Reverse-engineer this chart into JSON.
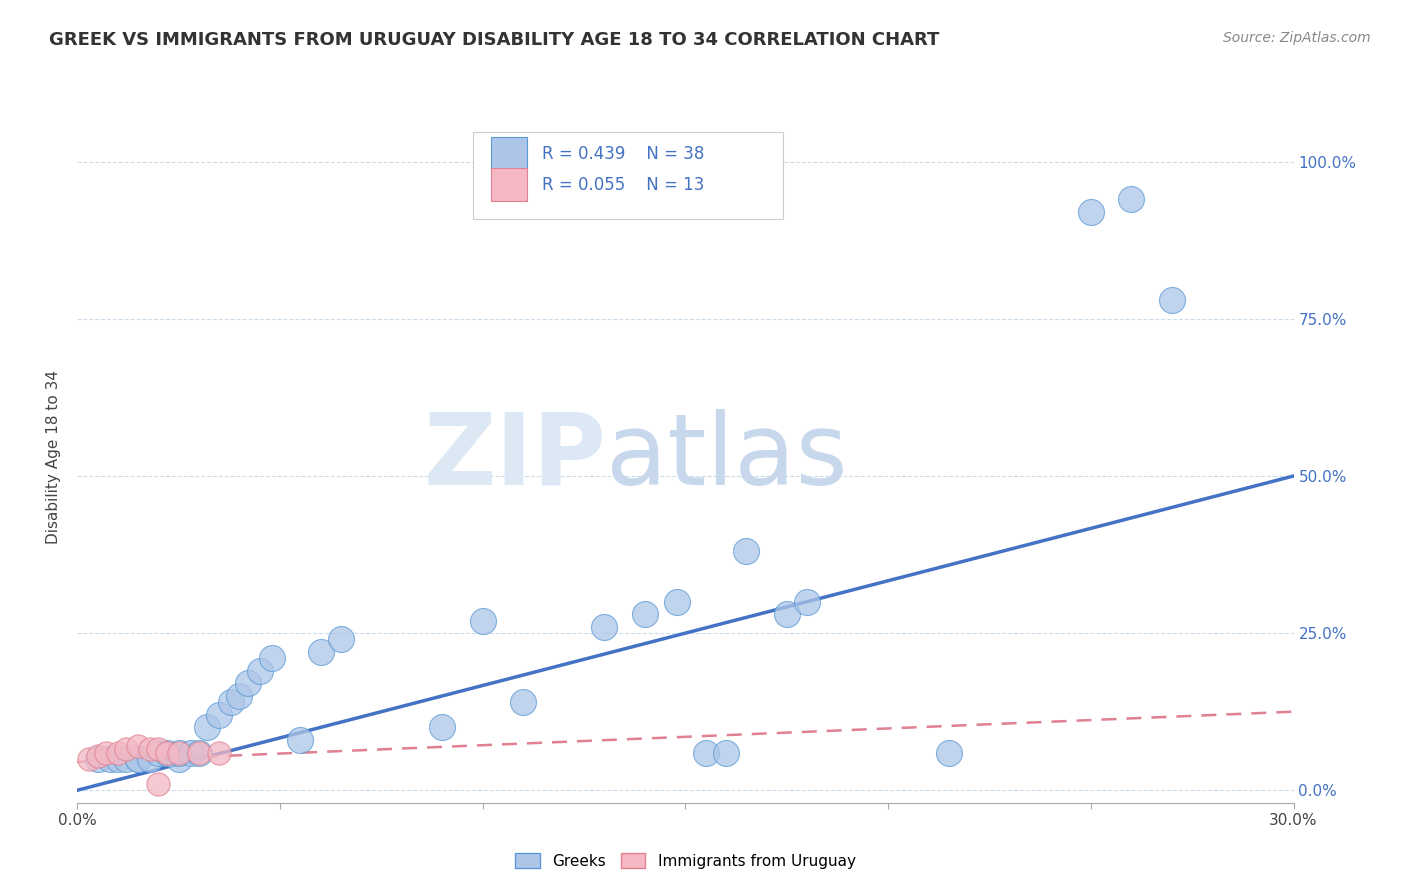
{
  "title": "GREEK VS IMMIGRANTS FROM URUGUAY DISABILITY AGE 18 TO 34 CORRELATION CHART",
  "source": "Source: ZipAtlas.com",
  "ylabel": "Disability Age 18 to 34",
  "xlabel": "",
  "xlim": [
    0.0,
    0.3
  ],
  "ylim": [
    -0.02,
    1.08
  ],
  "xticks": [
    0.0,
    0.05,
    0.1,
    0.15,
    0.2,
    0.25,
    0.3
  ],
  "xtick_labels": [
    "0.0%",
    "",
    "",
    "",
    "",
    "",
    "30.0%"
  ],
  "ytick_labels_right": [
    "0.0%",
    "25.0%",
    "50.0%",
    "75.0%",
    "100.0%"
  ],
  "ytick_positions_right": [
    0.0,
    0.25,
    0.5,
    0.75,
    1.0
  ],
  "greek_color": "#adc6e8",
  "greek_edge_color": "#5b9bd5",
  "uruguay_color": "#f4b8c4",
  "uruguay_edge_color": "#e08090",
  "greek_line_color": "#4472c4",
  "uruguay_line_color": "#e08090",
  "R_greek": 0.439,
  "N_greek": 38,
  "R_uruguay": 0.055,
  "N_uruguay": 13,
  "watermark_zip_color": "#dce8f4",
  "watermark_atlas_color": "#c8d8ec",
  "title_fontsize": 13,
  "greek_scatter_x": [
    0.005,
    0.008,
    0.01,
    0.012,
    0.015,
    0.015,
    0.018,
    0.02,
    0.022,
    0.025,
    0.025,
    0.028,
    0.03,
    0.032,
    0.035,
    0.038,
    0.04,
    0.042,
    0.045,
    0.048,
    0.055,
    0.06,
    0.065,
    0.09,
    0.1,
    0.11,
    0.13,
    0.14,
    0.148,
    0.155,
    0.16,
    0.165,
    0.175,
    0.18,
    0.215,
    0.25,
    0.26,
    0.27
  ],
  "greek_scatter_y": [
    0.05,
    0.05,
    0.05,
    0.05,
    0.05,
    0.05,
    0.05,
    0.06,
    0.06,
    0.05,
    0.06,
    0.06,
    0.06,
    0.1,
    0.12,
    0.14,
    0.15,
    0.17,
    0.19,
    0.21,
    0.08,
    0.22,
    0.24,
    0.1,
    0.27,
    0.14,
    0.26,
    0.28,
    0.3,
    0.06,
    0.06,
    0.38,
    0.28,
    0.3,
    0.06,
    0.92,
    0.94,
    0.78
  ],
  "uruguay_scatter_x": [
    0.003,
    0.005,
    0.007,
    0.01,
    0.012,
    0.015,
    0.018,
    0.02,
    0.022,
    0.025,
    0.03,
    0.035,
    0.02
  ],
  "uruguay_scatter_y": [
    0.05,
    0.055,
    0.06,
    0.06,
    0.065,
    0.07,
    0.065,
    0.065,
    0.06,
    0.06,
    0.06,
    0.06,
    0.01
  ],
  "background_color": "#ffffff",
  "grid_color": "#c8d8e8",
  "greek_line_x": [
    0.0,
    0.3
  ],
  "greek_line_y": [
    0.0,
    0.5
  ],
  "uruguay_line_x": [
    0.0,
    0.3
  ],
  "uruguay_line_y": [
    0.045,
    0.125
  ]
}
